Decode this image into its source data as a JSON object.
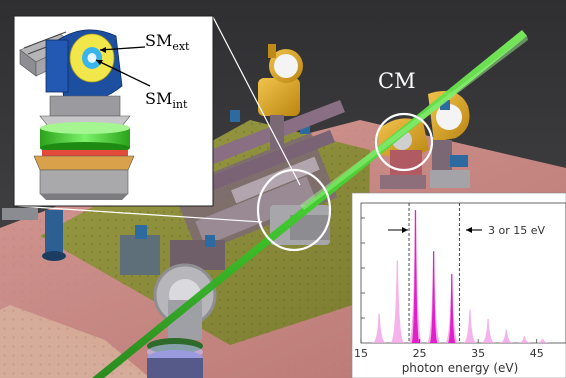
{
  "inset_labels": {
    "sm_ext_main": "SM",
    "sm_ext_sub": "ext",
    "sm_int_main": "SM",
    "sm_int_sub": "int"
  },
  "scene_labels": {
    "cm": "CM"
  },
  "colors": {
    "background": "#3a3a3c",
    "table_top": "#c98a86",
    "breadboard": "#8d8e3a",
    "beam": "#3fcf2c",
    "callout_circle": "#ffffff",
    "spectrum_peaks": "#e020c8",
    "spectrum_light": "#f3a6e8"
  },
  "chart_data": {
    "type": "area",
    "xlabel": "photon energy (eV)",
    "ylabel": "",
    "xlim": [
      15,
      50
    ],
    "x_ticks": [
      15,
      25,
      35,
      45
    ],
    "y_ticks_count": 5,
    "annotation": "3 or 15 eV",
    "dashed_lines_x": [
      23.2,
      31.8
    ],
    "light_series": {
      "peaks_x": [
        18.1,
        21.2,
        24.3,
        27.4,
        30.5,
        33.6,
        36.7,
        39.8,
        42.9,
        46.0
      ],
      "peaks_height": [
        0.22,
        0.62,
        1.0,
        0.69,
        0.52,
        0.25,
        0.18,
        0.1,
        0.05,
        0.03
      ]
    },
    "main_series": {
      "peaks_x": [
        24.3,
        27.4,
        30.5
      ],
      "peaks_height": [
        1.0,
        0.69,
        0.52
      ]
    }
  }
}
